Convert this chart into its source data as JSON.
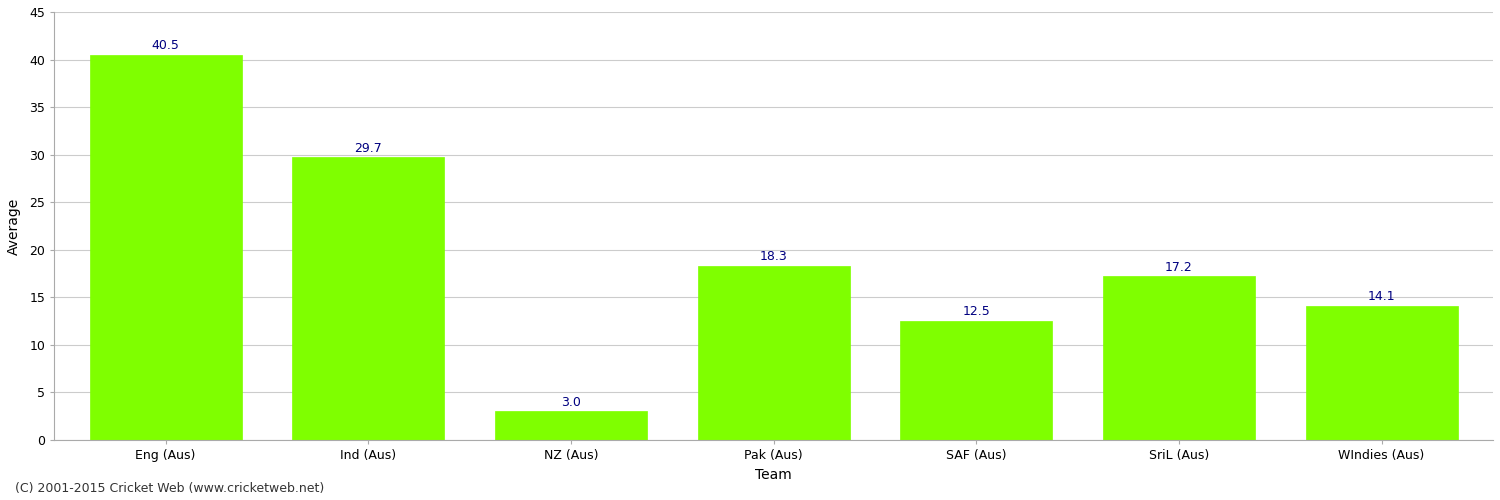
{
  "categories": [
    "Eng (Aus)",
    "Ind (Aus)",
    "NZ (Aus)",
    "Pak (Aus)",
    "SAF (Aus)",
    "SriL (Aus)",
    "WIndies (Aus)"
  ],
  "values": [
    40.5,
    29.7,
    3.0,
    18.3,
    12.5,
    17.2,
    14.1
  ],
  "bar_color": "#7fff00",
  "bar_edge_color": "#7fff00",
  "value_color": "#000080",
  "ylabel": "Average",
  "xlabel": "Team",
  "ylim": [
    0,
    45
  ],
  "yticks": [
    0,
    5,
    10,
    15,
    20,
    25,
    30,
    35,
    40,
    45
  ],
  "grid_color": "#cccccc",
  "bg_color": "#ffffff",
  "footer": "(C) 2001-2015 Cricket Web (www.cricketweb.net)",
  "value_fontsize": 9,
  "label_fontsize": 9,
  "ylabel_fontsize": 10,
  "xlabel_fontsize": 10,
  "footer_fontsize": 9
}
